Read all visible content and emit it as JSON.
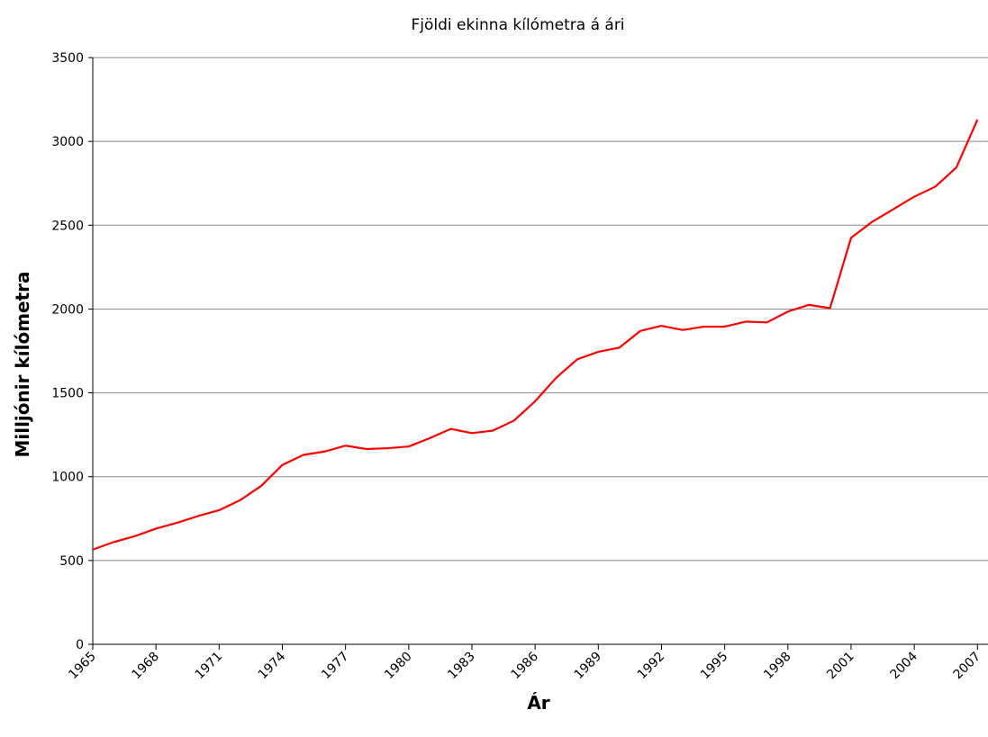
{
  "chart_data": {
    "type": "line",
    "title": "Fjöldi ekinna kílómetra á ári",
    "x_label": "Ár",
    "y_label": "Milljónir kílómetra",
    "x": [
      1965,
      1966,
      1967,
      1968,
      1969,
      1970,
      1971,
      1972,
      1973,
      1974,
      1975,
      1976,
      1977,
      1978,
      1979,
      1980,
      1981,
      1982,
      1983,
      1984,
      1985,
      1986,
      1987,
      1988,
      1989,
      1990,
      1991,
      1992,
      1993,
      1994,
      1995,
      1996,
      1997,
      1998,
      1999,
      2000,
      2001,
      2002,
      2003,
      2004,
      2005,
      2006,
      2007
    ],
    "series": [
      {
        "color": "#ff0000",
        "values": [
          565,
          610,
          645,
          690,
          725,
          765,
          800,
          860,
          945,
          1070,
          1130,
          1150,
          1185,
          1165,
          1170,
          1180,
          1230,
          1285,
          1260,
          1275,
          1335,
          1450,
          1590,
          1700,
          1745,
          1770,
          1870,
          1900,
          1875,
          1895,
          1895,
          1925,
          1920,
          1985,
          2025,
          2005,
          2425,
          2520,
          2595,
          2670,
          2730,
          2845,
          3130
        ]
      }
    ],
    "xlim": [
      1965,
      2007.5
    ],
    "xticks": [
      1965,
      1968,
      1971,
      1974,
      1977,
      1980,
      1983,
      1986,
      1989,
      1992,
      1995,
      1998,
      2001,
      2004,
      2007
    ],
    "ylim": [
      0,
      3500
    ],
    "yticks": [
      0,
      500,
      1000,
      1500,
      2000,
      2500,
      3000,
      3500
    ],
    "grid": true
  }
}
